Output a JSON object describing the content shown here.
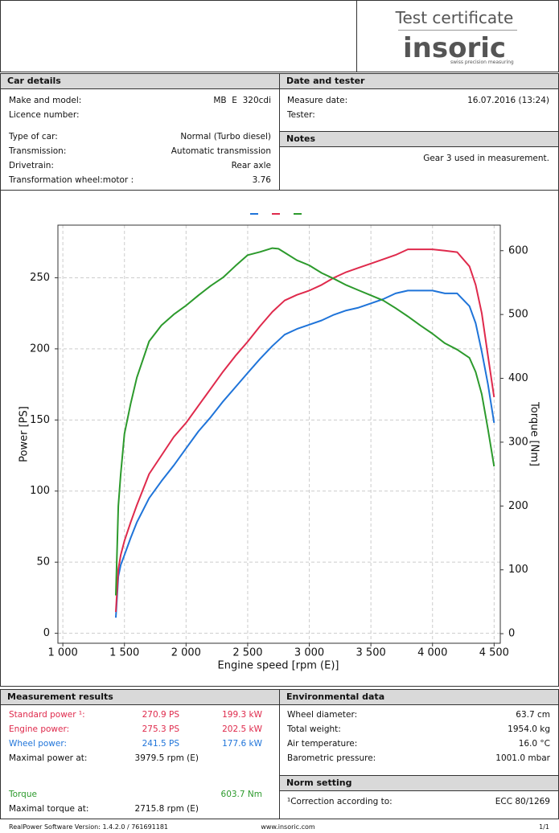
{
  "header": {
    "title": "Test certificate",
    "brand": "insoric",
    "tagline": "swiss precision measuring"
  },
  "car_details": {
    "title": "Car details",
    "rows": [
      {
        "label": "Make and model:",
        "value": "MB  E  320cdi"
      },
      {
        "label": "Licence number:"
      },
      {
        "label": "Type of car:",
        "value": "Normal (Turbo diesel)"
      },
      {
        "label": "Transmission:",
        "value": "Automatic transmission"
      },
      {
        "label": "Drivetrain:",
        "value": "Rear axle"
      },
      {
        "label": "Transformation wheel:motor :",
        "value": "3.76"
      }
    ]
  },
  "date_tester": {
    "title": "Date and tester",
    "rows": [
      {
        "label": "Measure date:",
        "value": "16.07.2016 (13:24)"
      },
      {
        "label": "Tester:"
      }
    ]
  },
  "notes": {
    "title": "Notes",
    "text": "Gear 3 used in measurement."
  },
  "chart_data": {
    "type": "line",
    "x_label": "Engine speed [rpm (E)]",
    "y_label": "Power [PS]",
    "y2_label": "Torque [Nm]",
    "x": [
      1430,
      1450,
      1470,
      1500,
      1550,
      1600,
      1700,
      1800,
      1900,
      2000,
      2100,
      2200,
      2300,
      2400,
      2500,
      2600,
      2700,
      2750,
      2800,
      2900,
      3000,
      3100,
      3200,
      3300,
      3400,
      3500,
      3600,
      3700,
      3800,
      3900,
      4000,
      4100,
      4200,
      4300,
      4350,
      4400,
      4450,
      4500
    ],
    "series": [
      {
        "color": "#1f74d9",
        "values": [
          11,
          40,
          48,
          55,
          67,
          78,
          95,
          107,
          118,
          130,
          142,
          152,
          163,
          173,
          183,
          193,
          202,
          206,
          210,
          214,
          217,
          220,
          224,
          227,
          229,
          232,
          235,
          239,
          241,
          241,
          241,
          239,
          239,
          230,
          218,
          198,
          175,
          148
        ]
      },
      {
        "color": "#df2a4c",
        "values": [
          15,
          45,
          55,
          65,
          78,
          90,
          112,
          125,
          138,
          148,
          160,
          172,
          184,
          195,
          205,
          216,
          226,
          230,
          234,
          238,
          241,
          245,
          250,
          254,
          257,
          260,
          263,
          266,
          270,
          270,
          270,
          269,
          268,
          258,
          245,
          225,
          195,
          166
        ]
      },
      {
        "color": "#2c9a2c",
        "axis": "y2",
        "values": [
          60,
          200,
          250,
          313,
          360,
          401,
          458,
          483,
          500,
          514,
          530,
          545,
          558,
          576,
          593,
          598,
          604,
          603,
          597,
          585,
          577,
          565,
          556,
          546,
          538,
          530,
          522,
          510,
          497,
          483,
          470,
          455,
          445,
          432,
          410,
          375,
          320,
          262
        ]
      }
    ],
    "xlim": [
      960,
      4550
    ],
    "xticks": [
      {
        "value": 1000,
        "label": "1 000"
      },
      {
        "value": 1500,
        "label": "1 500"
      },
      {
        "value": 2000,
        "label": "2 000"
      },
      {
        "value": 2500,
        "label": "2 500"
      },
      {
        "value": 3000,
        "label": "3 000"
      },
      {
        "value": 3500,
        "label": "3 500"
      },
      {
        "value": 4000,
        "label": "4 000"
      },
      {
        "value": 4500,
        "label": "4 500"
      }
    ],
    "ylim": [
      -7,
      287
    ],
    "yticks": [
      0,
      50,
      100,
      150,
      200,
      250
    ],
    "y2lim": [
      -15,
      640
    ],
    "y2ticks": [
      0,
      100,
      200,
      300,
      400,
      500,
      600
    ],
    "grid": true
  },
  "measurement_results": {
    "title": "Measurement results",
    "rows": [
      {
        "label": "Standard power ¹:",
        "a": "270.9 PS",
        "b": "199.3 kW",
        "color": "#df2a4c"
      },
      {
        "label": "Engine power:",
        "a": "275.3 PS",
        "b": "202.5 kW",
        "color": "#df2a4c"
      },
      {
        "label": "Wheel power:",
        "a": "241.5 PS",
        "b": "177.6 kW",
        "color": "#1f74d9"
      },
      {
        "label": "Maximal power at:",
        "a": "3979.5 rpm (E)"
      },
      {
        "label": "Torque",
        "b": "603.7 Nm",
        "color": "#2c9a2c"
      },
      {
        "label": "Maximal torque at:",
        "a": "2715.8 rpm (E)"
      }
    ]
  },
  "environmental_data": {
    "title": "Environmental data",
    "rows": [
      {
        "label": "Wheel diameter:",
        "value": "63.7 cm"
      },
      {
        "label": "Total weight:",
        "value": "1954.0 kg"
      },
      {
        "label": "Air temperature:",
        "value": "16.0 °C"
      },
      {
        "label": "Barometric pressure:",
        "value": "1001.0 mbar"
      }
    ]
  },
  "norm_setting": {
    "title": "Norm setting",
    "rows": [
      {
        "label": "¹Correction according to:",
        "value": "ECC 80/1269"
      }
    ]
  },
  "footer": {
    "software": "RealPower Software Version: 1.4.2.0 / 761691181",
    "website": "www.insoric.com",
    "page": "1/1"
  }
}
